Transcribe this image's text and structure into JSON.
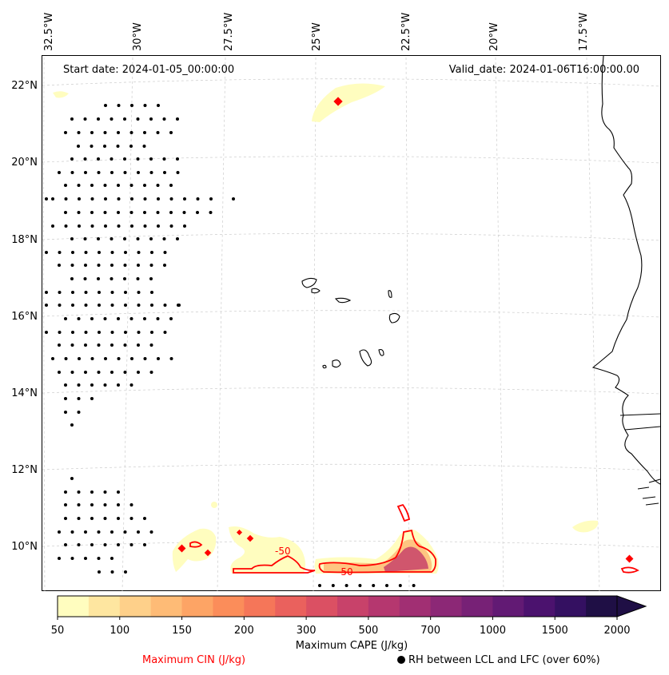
{
  "map": {
    "start_date": "Start date: 2024-01-05_00:00:00",
    "valid_date": "Valid_date: 2024-01-06T16:00:00.00",
    "lon_labels": [
      "32.5°W",
      "30°W",
      "27.5°W",
      "25°W",
      "22.5°W",
      "20°W",
      "17.5°W"
    ],
    "lat_labels": [
      "22°N",
      "20°N",
      "18°N",
      "16°N",
      "14°N",
      "12°N",
      "10°N"
    ],
    "cin_contour_labels": [
      "-50",
      "-50"
    ]
  },
  "colorbar": {
    "title": "Maximum CAPE (J/kg)",
    "ticks": [
      "50",
      "100",
      "150",
      "200",
      "300",
      "500",
      "700",
      "1000",
      "1500",
      "2000"
    ],
    "colors": [
      "#fffdbf",
      "#fee6a0",
      "#fed08a",
      "#febb76",
      "#fda465",
      "#fb8d5a",
      "#f57659",
      "#ea615d",
      "#db5063",
      "#c8426a",
      "#b5376f",
      "#a12f73",
      "#8c2876",
      "#772176",
      "#621a74",
      "#4b126e",
      "#341061",
      "#1f0f45"
    ]
  },
  "legend": {
    "cin_label": "Maximum CIN (J/kg)",
    "cin_color": "#ff0000",
    "rh_label": "RH between LCL and LFC (over 60%)"
  }
}
